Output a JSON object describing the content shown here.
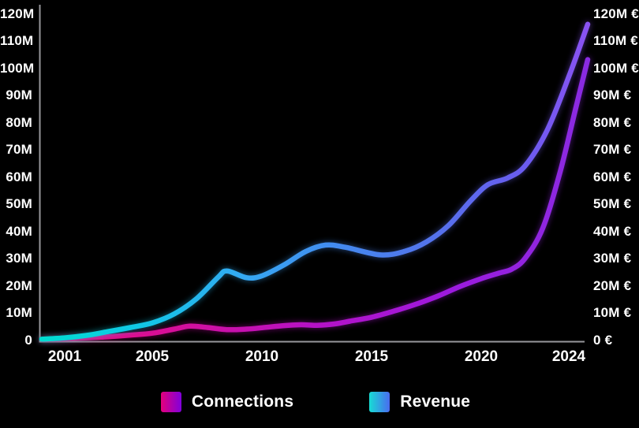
{
  "chart_data": {
    "type": "line",
    "title": "",
    "x_axis": {
      "range": [
        1999.9,
        2024.95
      ],
      "ticks": [
        {
          "value": 2001,
          "label": "2001"
        },
        {
          "value": 2005,
          "label": "2005"
        },
        {
          "value": 2010,
          "label": "2010"
        },
        {
          "value": 2015,
          "label": "2015"
        },
        {
          "value": 2020,
          "label": "2020"
        },
        {
          "value": 2024,
          "label": "2024"
        }
      ]
    },
    "y_axis": {
      "range": [
        0,
        120
      ],
      "ticks": [
        {
          "value": 0,
          "left_label": "0",
          "right_label": "0 €"
        },
        {
          "value": 10,
          "left_label": "10M",
          "right_label": "10M €"
        },
        {
          "value": 20,
          "left_label": "20M",
          "right_label": "20M €"
        },
        {
          "value": 30,
          "left_label": "30M",
          "right_label": "30M €"
        },
        {
          "value": 40,
          "left_label": "40M",
          "right_label": "40M €"
        },
        {
          "value": 50,
          "left_label": "50M",
          "right_label": "50M €"
        },
        {
          "value": 60,
          "left_label": "60M",
          "right_label": "60M €"
        },
        {
          "value": 70,
          "left_label": "70M",
          "right_label": "70M €"
        },
        {
          "value": 80,
          "left_label": "80M",
          "right_label": "80M €"
        },
        {
          "value": 90,
          "left_label": "90M",
          "right_label": "90M €"
        },
        {
          "value": 100,
          "left_label": "100M",
          "right_label": "100M €"
        },
        {
          "value": 110,
          "left_label": "110M",
          "right_label": "110M €"
        },
        {
          "value": 120,
          "left_label": "120M",
          "right_label": "120M €"
        }
      ]
    },
    "axis_color": "#97979b",
    "series": [
      {
        "id": "connections",
        "name": "Connections",
        "legend_gradient": [
          "#e4007c",
          "#8000dc"
        ],
        "stops": [
          {
            "offset": 0,
            "color": "#ee0979"
          },
          {
            "offset": 0.25,
            "color": "#d50f9b"
          },
          {
            "offset": 0.5,
            "color": "#b512c6"
          },
          {
            "offset": 0.75,
            "color": "#9c1ade"
          },
          {
            "offset": 1,
            "color": "#8a2be2"
          }
        ],
        "points": [
          [
            1999.95,
            0.1
          ],
          [
            2001,
            0.35
          ],
          [
            2002,
            0.7
          ],
          [
            2003,
            1.1
          ],
          [
            2004,
            1.7
          ],
          [
            2005,
            2.4
          ],
          [
            2006,
            3.9
          ],
          [
            2006.7,
            5.0
          ],
          [
            2007.5,
            4.5
          ],
          [
            2008.4,
            3.7
          ],
          [
            2009.3,
            3.9
          ],
          [
            2010,
            4.4
          ],
          [
            2011,
            5.2
          ],
          [
            2011.8,
            5.5
          ],
          [
            2012.5,
            5.3
          ],
          [
            2013.3,
            5.8
          ],
          [
            2014,
            6.8
          ],
          [
            2015,
            8.3
          ],
          [
            2016,
            10.5
          ],
          [
            2017,
            13
          ],
          [
            2018,
            16
          ],
          [
            2019,
            19.5
          ],
          [
            2020,
            22.5
          ],
          [
            2020.8,
            24.5
          ],
          [
            2021.4,
            26
          ],
          [
            2022,
            30
          ],
          [
            2022.8,
            41
          ],
          [
            2023.6,
            62
          ],
          [
            2024.3,
            85
          ],
          [
            2024.85,
            103
          ]
        ]
      },
      {
        "id": "revenue",
        "name": "Revenue",
        "legend_gradient": [
          "#17dcd4",
          "#4a6cf0"
        ],
        "stops": [
          {
            "offset": 0,
            "color": "#00ddd0"
          },
          {
            "offset": 0.18,
            "color": "#10c8e6"
          },
          {
            "offset": 0.38,
            "color": "#36a7f3"
          },
          {
            "offset": 0.55,
            "color": "#4489ef"
          },
          {
            "offset": 0.72,
            "color": "#5472ec"
          },
          {
            "offset": 0.88,
            "color": "#6a5cf0"
          },
          {
            "offset": 1,
            "color": "#8a52f2"
          }
        ],
        "points": [
          [
            1999.95,
            0.2
          ],
          [
            2001,
            0.7
          ],
          [
            2002,
            1.6
          ],
          [
            2003,
            3.0
          ],
          [
            2004,
            4.5
          ],
          [
            2005,
            6.2
          ],
          [
            2006,
            9.5
          ],
          [
            2007,
            15
          ],
          [
            2008,
            23
          ],
          [
            2008.4,
            25.3
          ],
          [
            2009.3,
            22.8
          ],
          [
            2010,
            23.5
          ],
          [
            2011,
            27.5
          ],
          [
            2012,
            32.5
          ],
          [
            2012.9,
            34.8
          ],
          [
            2013.8,
            34
          ],
          [
            2015.4,
            31.2
          ],
          [
            2016.5,
            32.5
          ],
          [
            2017.5,
            36
          ],
          [
            2018.5,
            42
          ],
          [
            2019.5,
            51
          ],
          [
            2020.3,
            57
          ],
          [
            2021.2,
            59.5
          ],
          [
            2022,
            64
          ],
          [
            2023,
            77
          ],
          [
            2024,
            97
          ],
          [
            2024.85,
            116
          ]
        ]
      }
    ],
    "legend": {
      "items": [
        {
          "label": "Connections"
        },
        {
          "label": "Revenue"
        }
      ],
      "position": "bottom"
    },
    "grid": false,
    "background": "#000000"
  }
}
